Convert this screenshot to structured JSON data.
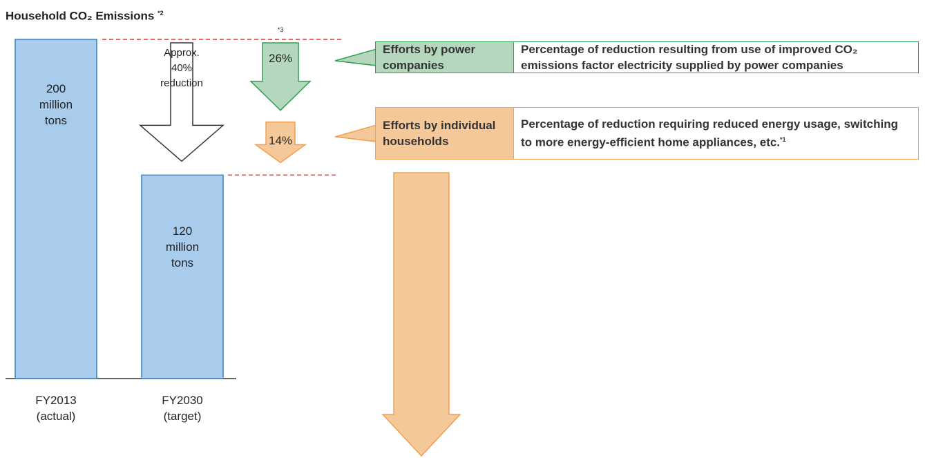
{
  "chart_data": {
    "type": "bar",
    "title": "Household CO₂ Emissions",
    "title_note": "*2",
    "categories": [
      "FY2013 (actual)",
      "FY2030 (target)"
    ],
    "values": [
      200,
      120
    ],
    "value_labels": [
      "200 million tons",
      "120 million tons"
    ],
    "color": "#a9cbec",
    "reduction_label": "Approx. 40% reduction",
    "reduction_note": "*3",
    "reductions": [
      {
        "name": "Efforts by power companies",
        "value": 26,
        "value_label": "26%",
        "color": "#b5d7bd",
        "border": "#2e9e4f",
        "description": "Percentage of reduction resulting from use of improved CO₂ emissions factor electricity supplied by power companies"
      },
      {
        "name": "Efforts by individual households",
        "value": 14,
        "value_label": "14%",
        "color": "#f5c89a",
        "border": "#f0a050",
        "description": "Percentage of reduction requiring reduced energy usage, switching to more energy-efficient home appliances, etc.",
        "note": "*1"
      }
    ]
  }
}
